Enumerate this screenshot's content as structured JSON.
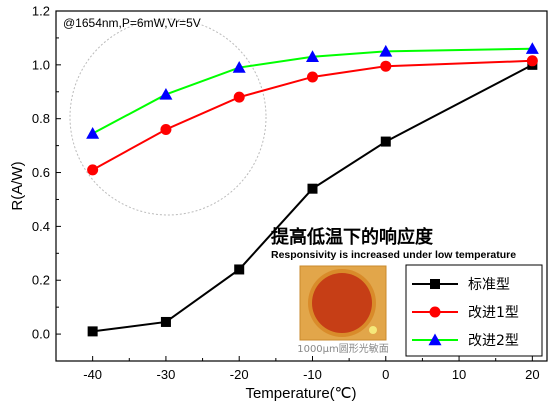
{
  "chart_data": {
    "type": "line",
    "title": "",
    "conditions_label": "@1654nm,P=6mW,Vr=5V",
    "xlabel": "Temperature(℃)",
    "ylabel": "R(A/W)",
    "x": [
      -40,
      -30,
      -20,
      -10,
      0,
      20
    ],
    "xlim": [
      -45,
      22
    ],
    "ylim": [
      -0.1,
      1.2
    ],
    "x_ticks": [
      -40,
      -30,
      -20,
      -10,
      0,
      10,
      20
    ],
    "y_ticks": [
      0.0,
      0.2,
      0.4,
      0.6,
      0.8,
      1.0,
      1.2
    ],
    "x_tick_labels": [
      "-40",
      "-30",
      "-20",
      "-10",
      "0",
      "10",
      "20"
    ],
    "y_tick_labels": [
      "0.0",
      "0.2",
      "0.4",
      "0.6",
      "0.8",
      "1.0",
      "1.2"
    ],
    "grid": false,
    "legend_position": "bottom-right",
    "series": [
      {
        "name": "标准型",
        "color": "#000000",
        "marker": "square",
        "values": [
          0.01,
          0.045,
          0.24,
          0.54,
          0.715,
          1.0
        ]
      },
      {
        "name": "改进1型",
        "color": "#ff0000",
        "marker": "circle",
        "values": [
          0.61,
          0.76,
          0.88,
          0.955,
          0.995,
          1.015
        ]
      },
      {
        "name": "改进2型",
        "color": "#00ff00",
        "marker": "triangle",
        "values": [
          0.745,
          0.89,
          0.99,
          1.03,
          1.05,
          1.06
        ]
      }
    ]
  },
  "annotation": {
    "title": "提高低温下的响应度",
    "subtitle": "Responsivity is increased under low temperature",
    "photo_caption": "1000μm圆形光敏面",
    "marker_color": "#0000ff"
  }
}
